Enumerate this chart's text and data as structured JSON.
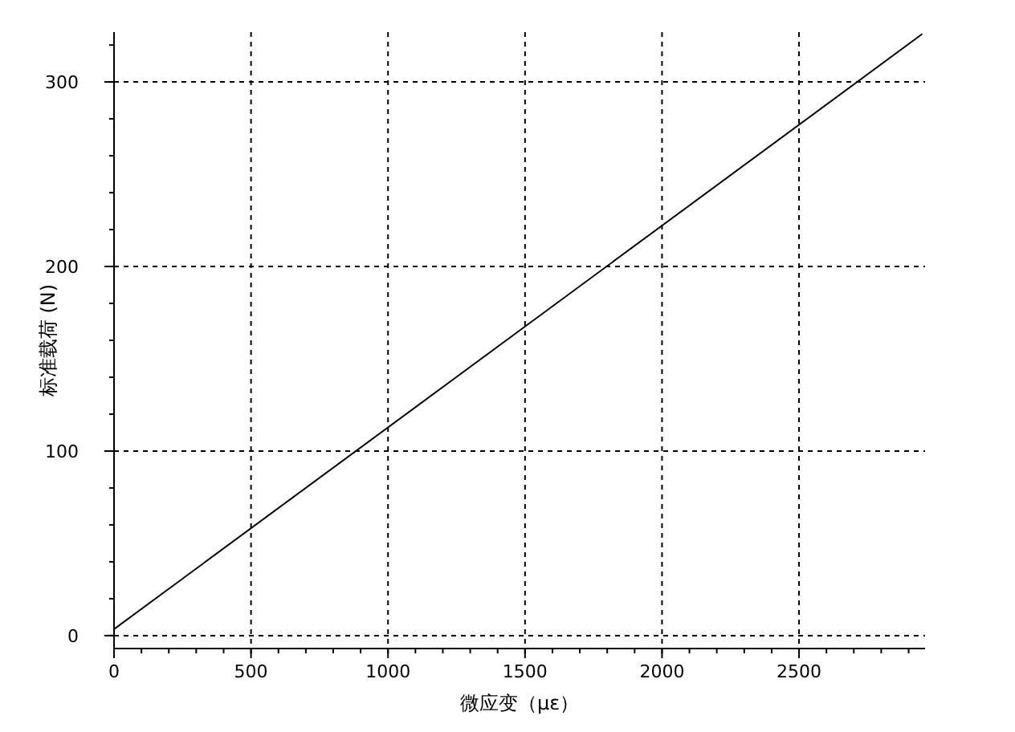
{
  "chart_data": {
    "type": "line",
    "xlabel": "微应变（με）",
    "ylabel": "标准载荷 (N)",
    "xlim": [
      0,
      2960
    ],
    "ylim": [
      -7,
      327
    ],
    "xticks": [
      0,
      500,
      1000,
      1500,
      2000,
      2500
    ],
    "yticks": [
      0,
      100,
      200,
      300
    ],
    "grid": true,
    "x": [
      0,
      2950
    ],
    "series": [
      {
        "color": "#000000",
        "values": [
          3.5,
          326
        ]
      }
    ]
  }
}
